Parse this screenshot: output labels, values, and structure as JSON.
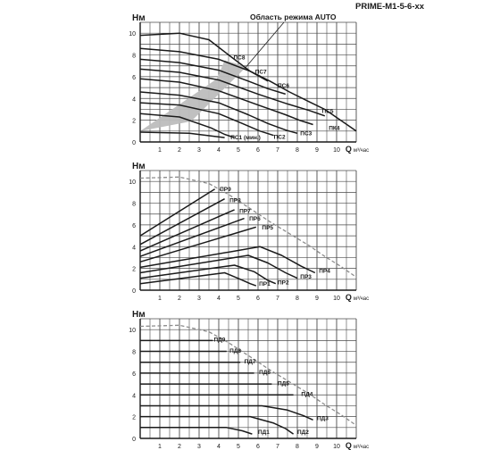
{
  "header": {
    "model": "PRIME-M1-5-6-xx",
    "auto_label": "Область режима AUTO"
  },
  "chart_data": [
    {
      "type": "line",
      "title": "",
      "ylabel": "Нм",
      "xlabel": "Q",
      "xunit": "м³/час",
      "xlim": [
        0,
        11
      ],
      "ylim": [
        0,
        11
      ],
      "xticks": [
        1,
        2,
        3,
        4,
        5,
        6,
        7,
        8,
        9,
        10
      ],
      "yticks": [
        0,
        2,
        4,
        6,
        8,
        10
      ],
      "grid": true,
      "auto_region": {
        "color": "#bdbdbd",
        "polygon": [
          [
            0,
            1
          ],
          [
            3.9,
            5.8
          ],
          [
            4.3,
            7.5
          ],
          [
            4.9,
            7.2
          ],
          [
            5.4,
            6.9
          ],
          [
            2.6,
            1.9
          ],
          [
            0,
            1
          ]
        ]
      },
      "series": [
        {
          "name": "ПС8",
          "label_at": [
            4.75,
            7.6
          ],
          "x": [
            0,
            2,
            3.5,
            4.5,
            5.6,
            6.6,
            7.6,
            8.6,
            9.4,
            10.2,
            11
          ],
          "y": [
            9.8,
            10.0,
            9.4,
            8.0,
            6.5,
            5.6,
            4.6,
            3.7,
            3.0,
            2.0,
            1.0
          ]
        },
        {
          "name": "ПС7",
          "label_at": [
            5.85,
            6.3
          ],
          "x": [
            0,
            2,
            4,
            5.6,
            6.5
          ],
          "y": [
            8.6,
            8.3,
            7.6,
            6.5,
            5.6
          ]
        },
        {
          "name": "ПС6",
          "label_at": [
            7.0,
            5.0
          ],
          "x": [
            0,
            2,
            4,
            5.5,
            6.5,
            7.4
          ],
          "y": [
            7.6,
            7.3,
            6.6,
            5.6,
            4.9,
            4.4
          ]
        },
        {
          "name": "ПС5",
          "label_at": [
            9.25,
            2.65
          ],
          "x": [
            0,
            2,
            4,
            6,
            7.5,
            8.6,
            9.4
          ],
          "y": [
            6.7,
            6.4,
            5.7,
            4.4,
            3.5,
            2.9,
            2.4
          ]
        },
        {
          "name": "ПК4",
          "label_at": [
            9.6,
            1.1
          ],
          "x": [
            0,
            2,
            4,
            6,
            7.4,
            8.1,
            8.8
          ],
          "y": [
            5.8,
            5.5,
            4.7,
            3.4,
            2.5,
            2.0,
            1.6
          ]
        },
        {
          "name": "ПС3",
          "label_at": [
            8.15,
            0.6
          ],
          "x": [
            0,
            2,
            4,
            5.5,
            6.5,
            7.4,
            8.0
          ],
          "y": [
            4.6,
            4.3,
            3.6,
            2.5,
            1.7,
            1.1,
            0.8
          ]
        },
        {
          "name": "ПС2",
          "label_at": [
            6.8,
            0.3
          ],
          "x": [
            0,
            2,
            4,
            5.2,
            6.1,
            6.8
          ],
          "y": [
            3.6,
            3.4,
            2.6,
            1.7,
            1.0,
            0.6
          ]
        },
        {
          "name": "ПС1 (мин.)",
          "label_at": [
            4.6,
            0.25
          ],
          "x": [
            0,
            2,
            3.6,
            4.3,
            4.8
          ],
          "y": [
            2.6,
            2.3,
            1.3,
            0.7,
            0.4
          ]
        },
        {
          "name": "",
          "x": [
            0,
            2.5,
            4.3
          ],
          "y": [
            0.9,
            0.8,
            0.4
          ]
        }
      ]
    },
    {
      "type": "line",
      "title": "",
      "ylabel": "Нм",
      "xlabel": "Q",
      "xunit": "м³/час",
      "xlim": [
        0,
        11
      ],
      "ylim": [
        0,
        11
      ],
      "xticks": [
        1,
        2,
        3,
        4,
        5,
        6,
        7,
        8,
        9,
        10
      ],
      "yticks": [
        0,
        2,
        4,
        6,
        8,
        10
      ],
      "grid": true,
      "max_curve": {
        "x": [
          0,
          2,
          3.5,
          4.5,
          5.6,
          6.6,
          7.6,
          8.6,
          9.4,
          10.2,
          11
        ],
        "y": [
          10.3,
          10.4,
          9.8,
          8.8,
          7.5,
          6.3,
          5.2,
          4.1,
          3.1,
          2.2,
          1.2
        ]
      },
      "series": [
        {
          "name": "ПР9",
          "label_at": [
            4.05,
            9.1
          ],
          "x": [
            0,
            3.8
          ],
          "y": [
            5.0,
            9.3
          ]
        },
        {
          "name": "ПР8",
          "label_at": [
            4.55,
            8.1
          ],
          "x": [
            0,
            4.3
          ],
          "y": [
            4.2,
            8.4
          ]
        },
        {
          "name": "ПР7",
          "label_at": [
            5.05,
            7.1
          ],
          "x": [
            0,
            4.8
          ],
          "y": [
            3.6,
            7.4
          ]
        },
        {
          "name": "ПР6",
          "label_at": [
            5.55,
            6.4
          ],
          "x": [
            0,
            5.3
          ],
          "y": [
            3.1,
            6.6
          ]
        },
        {
          "name": "ПР5",
          "label_at": [
            6.2,
            5.6
          ],
          "x": [
            0,
            5.9
          ],
          "y": [
            2.6,
            5.8
          ]
        },
        {
          "name": "ПР4",
          "label_at": [
            9.1,
            1.6
          ],
          "x": [
            0,
            6.1,
            7.2,
            8.2,
            8.9
          ],
          "y": [
            2.1,
            4.0,
            3.2,
            2.2,
            1.6
          ]
        },
        {
          "name": "ПР3",
          "label_at": [
            8.15,
            1.05
          ],
          "x": [
            0,
            5.5,
            6.5,
            7.4,
            8.0
          ],
          "y": [
            1.6,
            3.2,
            2.5,
            1.6,
            1.1
          ]
        },
        {
          "name": "ПР2",
          "label_at": [
            7.0,
            0.55
          ],
          "x": [
            0,
            4.8,
            5.8,
            6.5,
            6.9
          ],
          "y": [
            1.1,
            2.3,
            1.7,
            0.9,
            0.6
          ]
        },
        {
          "name": "ПР1",
          "label_at": [
            6.05,
            0.4
          ],
          "x": [
            0,
            4.3,
            5.1,
            5.6,
            5.9
          ],
          "y": [
            0.6,
            1.6,
            1.0,
            0.6,
            0.4
          ]
        }
      ]
    },
    {
      "type": "line",
      "title": "",
      "ylabel": "Нм",
      "xlabel": "Q",
      "xunit": "м³/час",
      "xlim": [
        0,
        11
      ],
      "ylim": [
        0,
        11
      ],
      "xticks": [
        1,
        2,
        3,
        4,
        5,
        6,
        7,
        8,
        9,
        10
      ],
      "yticks": [
        0,
        2,
        4,
        6,
        8,
        10
      ],
      "grid": true,
      "max_curve": {
        "x": [
          0,
          2,
          3.5,
          4.5,
          5.6,
          6.6,
          7.6,
          8.6,
          9.4,
          10.2,
          11
        ],
        "y": [
          10.3,
          10.4,
          9.8,
          8.8,
          7.5,
          6.3,
          5.2,
          4.1,
          3.1,
          2.2,
          1.2
        ]
      },
      "series": [
        {
          "name": "ПД9",
          "label_at": [
            3.75,
            8.9
          ],
          "x": [
            0,
            3.7
          ],
          "y": [
            9.0,
            9.0
          ]
        },
        {
          "name": "ПД8",
          "label_at": [
            4.55,
            7.9
          ],
          "x": [
            0,
            4.4
          ],
          "y": [
            8.0,
            8.0
          ]
        },
        {
          "name": "ПД7",
          "label_at": [
            5.3,
            6.9
          ],
          "x": [
            0,
            5.1
          ],
          "y": [
            7.0,
            7.0
          ]
        },
        {
          "name": "ПД6",
          "label_at": [
            6.05,
            5.9
          ],
          "x": [
            0,
            5.8
          ],
          "y": [
            6.0,
            6.0
          ]
        },
        {
          "name": "ПД5",
          "label_at": [
            7.0,
            4.9
          ],
          "x": [
            0,
            6.7
          ],
          "y": [
            5.0,
            5.0
          ]
        },
        {
          "name": "ПД4",
          "label_at": [
            8.2,
            3.9
          ],
          "x": [
            0,
            7.8
          ],
          "y": [
            4.0,
            4.0
          ]
        },
        {
          "name": "ПД3",
          "label_at": [
            9.0,
            1.7
          ],
          "x": [
            0,
            6.2,
            7.5,
            8.3,
            8.8
          ],
          "y": [
            3.0,
            3.0,
            2.6,
            2.1,
            1.7
          ]
        },
        {
          "name": "ПД2",
          "label_at": [
            8.0,
            0.4
          ],
          "x": [
            0,
            5.6,
            6.8,
            7.4,
            7.8
          ],
          "y": [
            2.0,
            2.0,
            1.4,
            0.9,
            0.4
          ]
        },
        {
          "name": "ПД1",
          "label_at": [
            6.0,
            0.4
          ],
          "x": [
            0,
            4.4,
            5.2,
            5.7
          ],
          "y": [
            1.0,
            1.0,
            0.7,
            0.4
          ]
        }
      ]
    }
  ]
}
